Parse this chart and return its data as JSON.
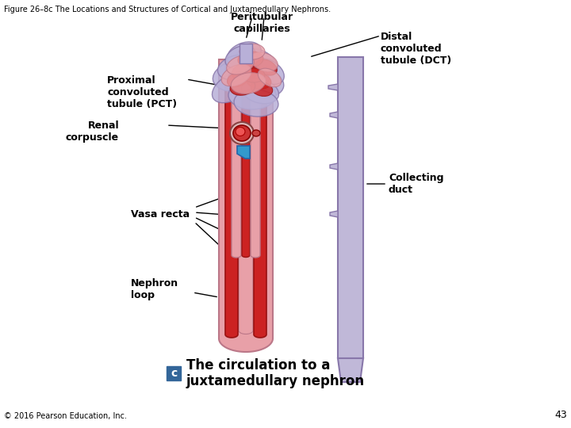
{
  "figure_title": "Figure 26–8c The Locations and Structures of Cortical and Juxtamedullary Nephrons.",
  "caption_c": "c",
  "caption_text": "The circulation to a\njuxtamedullary nephron",
  "page_number": "43",
  "copyright": "© 2016 Pearson Education, Inc.",
  "labels": {
    "peritubular_capillaries": "Peritubular\ncapillaries",
    "distal_convoluted_tubule": "Distal\nconvoluted\ntubule (DCT)",
    "proximal_convoluted_tubule": "Proximal\nconvoluted\ntubule (PCT)",
    "renal_corpuscle": "Renal\ncorpuscle",
    "collecting_duct": "Collecting\nduct",
    "vasa_recta": "Vasa recta",
    "nephron_loop": "Nephron\nloop"
  },
  "colors": {
    "background": "#ffffff",
    "tubule_pink": "#e8a0a8",
    "tubule_red": "#cc2222",
    "tubule_lavender": "#b8b0d8",
    "collecting_duct_light": "#c0b8d8",
    "collecting_duct_edge": "#8877aa",
    "blue_accent": "#3399cc",
    "text_color": "#000000",
    "label_box_c": "#336699"
  },
  "figure_title_fontsize": 7,
  "label_fontsize": 9,
  "caption_fontsize": 12,
  "copyright_fontsize": 7
}
